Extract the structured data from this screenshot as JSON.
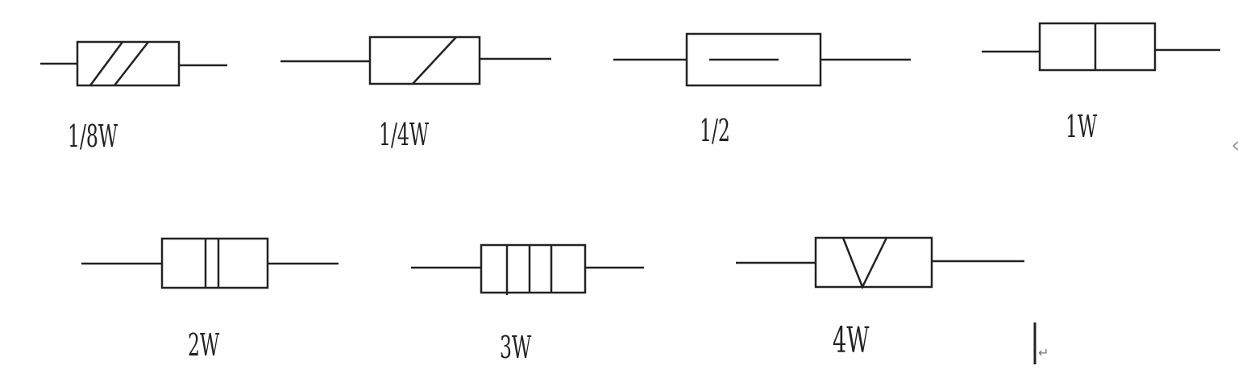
{
  "resistors": [
    {
      "label": "1/8W",
      "marking": "two-diagonal-slashes"
    },
    {
      "label": "1/4W",
      "marking": "one-diagonal-slash"
    },
    {
      "label": "1/2",
      "marking": "horizontal-dash"
    },
    {
      "label": "1W",
      "marking": "one-vertical-bar"
    },
    {
      "label": "2W",
      "marking": "two-vertical-bars"
    },
    {
      "label": "3W",
      "marking": "three-vertical-bars"
    },
    {
      "label": "4W",
      "marking": "v-shape"
    }
  ],
  "colors": {
    "stroke": "#222222",
    "background": "#ffffff"
  },
  "return_mark": "↵"
}
